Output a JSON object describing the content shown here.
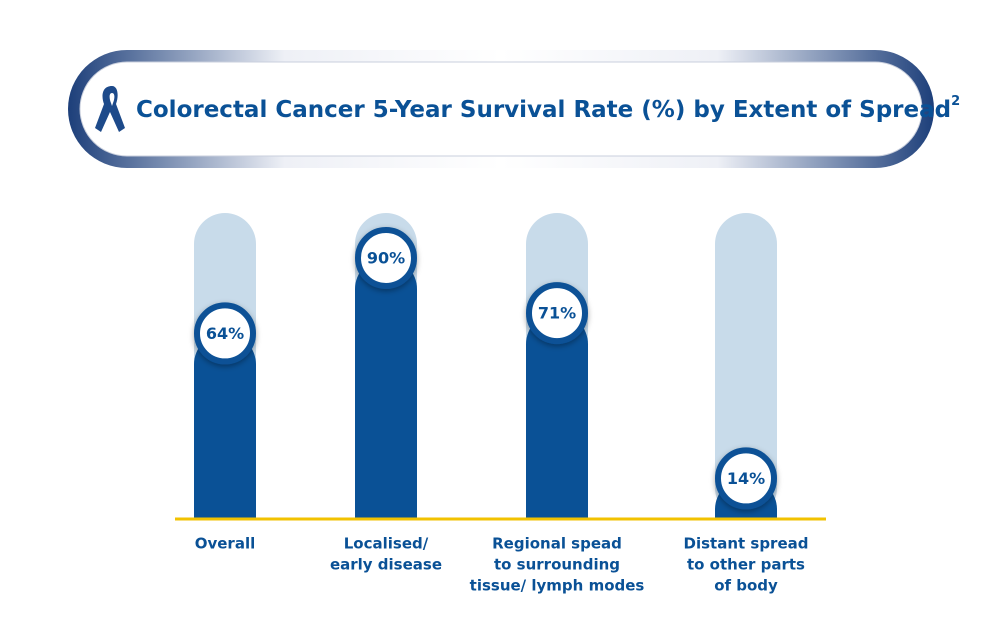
{
  "chart_data": {
    "type": "bar",
    "title": "Colorectal Cancer 5-Year Survival Rate (%) by Extent of Spread",
    "title_footnote": "2",
    "categories": [
      [
        "Overall"
      ],
      [
        "Localised/",
        "early disease"
      ],
      [
        "Regional spead",
        "to surrounding",
        "tissue/ lymph modes"
      ],
      [
        "Distant spread",
        "to other parts",
        "of body"
      ]
    ],
    "values": [
      64,
      90,
      71,
      14
    ],
    "value_labels": [
      "64%",
      "90%",
      "71%",
      "14%"
    ],
    "color": "#0a5196",
    "track_color": "#c8dbea",
    "baseline_color": "#f2c200",
    "ylim": [
      0,
      100
    ]
  }
}
